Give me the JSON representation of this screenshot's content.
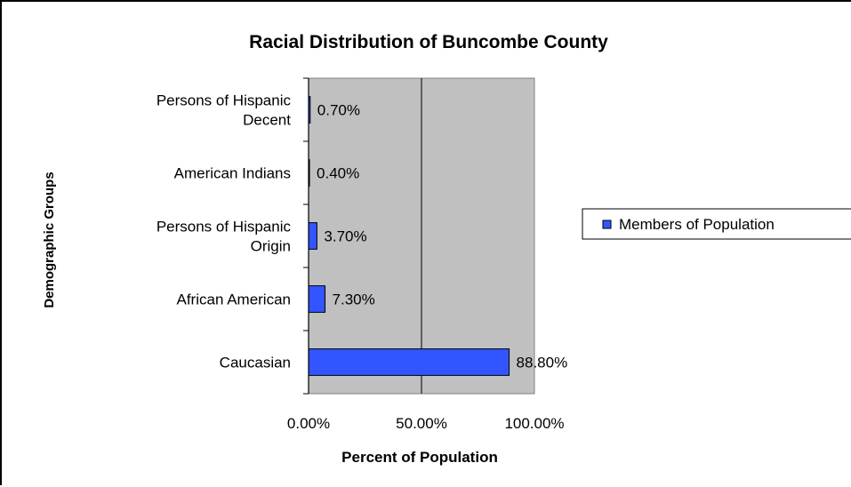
{
  "chart_data": {
    "type": "bar",
    "orientation": "horizontal",
    "title": "Racial Distribution of Buncombe County",
    "xlabel": "Percent of Population",
    "ylabel": "Demographic Groups",
    "categories": [
      [
        "Persons of Hispanic",
        "Decent"
      ],
      [
        "American Indians"
      ],
      [
        "Persons of Hispanic",
        "Origin"
      ],
      [
        "African American"
      ],
      [
        "Caucasian"
      ]
    ],
    "series": [
      {
        "name": "Members of Population",
        "values": [
          0.7,
          0.4,
          3.7,
          7.3,
          88.8
        ],
        "labels": [
          "0.70%",
          "0.40%",
          "3.70%",
          "7.30%",
          "88.80%"
        ]
      }
    ],
    "xlim": [
      0,
      100
    ],
    "x_ticks": [
      0,
      50,
      100
    ],
    "x_tick_labels": [
      "0.00%",
      "50.00%",
      "100.00%"
    ],
    "grid": "vertical-major",
    "legend": "right",
    "colors": {
      "bar": "#3355ff",
      "bar_outline": "#000000",
      "plot_background": "#c0c0c0",
      "gridline": "#000000"
    }
  }
}
